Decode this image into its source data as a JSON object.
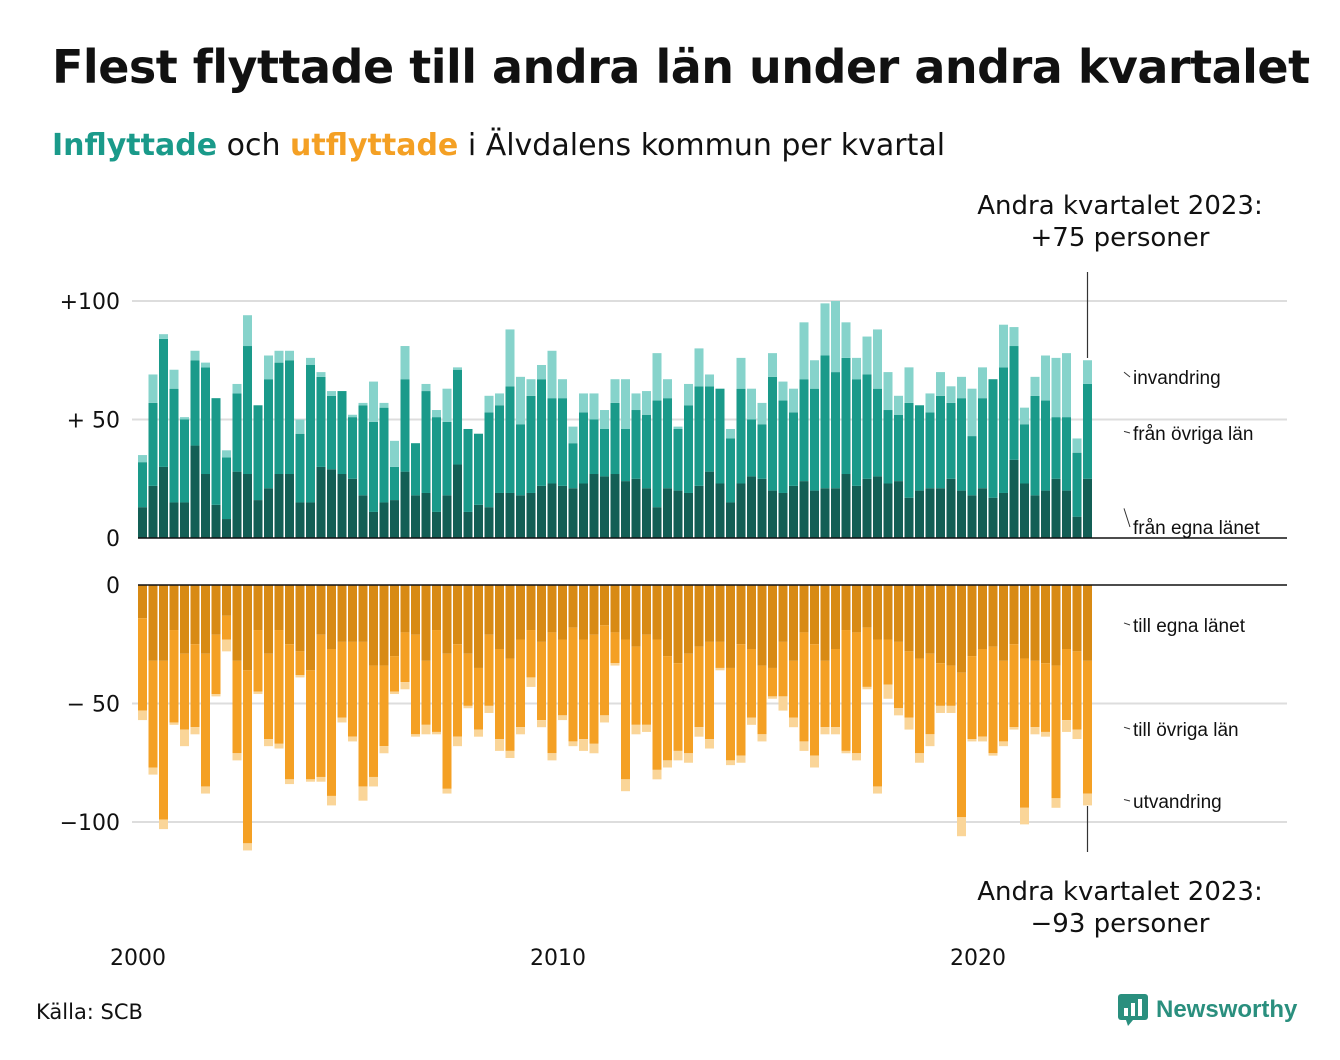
{
  "title": "Flest flyttade till andra län under andra kvartalet",
  "subtitle": {
    "part1": "Inflyttade",
    "part2": "och",
    "part3": "utflyttade",
    "part4": "i Älvdalens kommun per kvartal"
  },
  "annotation_top": {
    "line1": "Andra kvartalet 2023:",
    "line2": "+75 personer"
  },
  "annotation_bottom": {
    "line1": "Andra kvartalet 2023:",
    "line2": "−93 personer"
  },
  "source": "Källa: SCB",
  "logo_text": "Newsworthy",
  "colors": {
    "in_own": "#135f55",
    "in_other": "#1a9a8a",
    "in_immig": "#86d3cb",
    "out_own": "#d88a14",
    "out_other": "#f4a024",
    "out_emig": "#fad598",
    "grid": "#dddddd"
  },
  "chart_data": [
    {
      "type": "bar",
      "stacked": true,
      "title": "",
      "x_tick_labels": [
        "2000",
        "2010",
        "2020"
      ],
      "y_tick_labels": [
        "0",
        "+ 50",
        "+100"
      ],
      "ylim": [
        0,
        100
      ],
      "series_labels": [
        "från egna länet",
        "från övriga län",
        "invandring"
      ],
      "series": [
        {
          "name": "från egna länet",
          "values": [
            13,
            22,
            30,
            15,
            15,
            39,
            27,
            14,
            8,
            28,
            27,
            16,
            21,
            27,
            27,
            15,
            15,
            30,
            29,
            27,
            25,
            18,
            11,
            15,
            16,
            28,
            18,
            19,
            11,
            18,
            31,
            11,
            14,
            13,
            19,
            19,
            18,
            19,
            22,
            23,
            22,
            21,
            23,
            27,
            26,
            27,
            24,
            25,
            21,
            13,
            21,
            20,
            19,
            22,
            28,
            23,
            15,
            23,
            26,
            25,
            20,
            19,
            22,
            24,
            20,
            21,
            21,
            27,
            22,
            25,
            26,
            23,
            24,
            17,
            20,
            21,
            21,
            25,
            20,
            18,
            21,
            17,
            19,
            33,
            23,
            18,
            20,
            25,
            20,
            9,
            25
          ]
        },
        {
          "name": "från övriga län",
          "values": [
            19,
            35,
            54,
            48,
            35,
            36,
            45,
            45,
            26,
            33,
            54,
            40,
            46,
            47,
            48,
            29,
            58,
            38,
            31,
            35,
            26,
            38,
            38,
            40,
            14,
            39,
            22,
            43,
            40,
            31,
            40,
            35,
            30,
            40,
            37,
            45,
            30,
            41,
            45,
            36,
            37,
            19,
            30,
            23,
            20,
            30,
            22,
            29,
            31,
            45,
            38,
            26,
            37,
            42,
            36,
            40,
            27,
            40,
            24,
            23,
            48,
            39,
            31,
            43,
            43,
            56,
            49,
            49,
            45,
            44,
            37,
            31,
            28,
            40,
            36,
            32,
            39,
            32,
            39,
            25,
            38,
            50,
            53,
            48,
            25,
            42,
            38,
            26,
            31,
            27,
            40
          ]
        },
        {
          "name": "invandring",
          "values": [
            3,
            12,
            2,
            8,
            1,
            4,
            2,
            0,
            3,
            4,
            13,
            0,
            10,
            5,
            4,
            6,
            3,
            2,
            2,
            0,
            1,
            1,
            17,
            2,
            11,
            14,
            0,
            3,
            3,
            14,
            1,
            0,
            0,
            7,
            5,
            24,
            20,
            7,
            6,
            20,
            8,
            7,
            8,
            11,
            8,
            10,
            21,
            7,
            10,
            20,
            8,
            1,
            9,
            16,
            5,
            0,
            4,
            13,
            13,
            9,
            10,
            8,
            10,
            24,
            12,
            22,
            30,
            15,
            9,
            16,
            25,
            16,
            8,
            15,
            0,
            8,
            10,
            7,
            9,
            20,
            13,
            0,
            18,
            8,
            7,
            8,
            19,
            25,
            27,
            6,
            10
          ]
        }
      ]
    },
    {
      "type": "bar",
      "stacked": true,
      "title": "",
      "x_tick_labels": [
        "2000",
        "2010",
        "2020"
      ],
      "y_tick_labels": [
        "0",
        "− 50",
        "−100"
      ],
      "ylim": [
        -100,
        0
      ],
      "series_labels": [
        "till egna länet",
        "till övriga län",
        "utvandring"
      ],
      "series": [
        {
          "name": "till egna länet",
          "values": [
            -14,
            -32,
            -32,
            -19,
            -29,
            -25,
            -29,
            -21,
            -13,
            -32,
            -36,
            -19,
            -29,
            -19,
            -25,
            -28,
            -36,
            -21,
            -27,
            -24,
            -24,
            -24,
            -34,
            -34,
            -30,
            -20,
            -21,
            -32,
            -19,
            -29,
            -25,
            -29,
            -35,
            -21,
            -27,
            -31,
            -23,
            -19,
            -24,
            -20,
            -23,
            -18,
            -23,
            -21,
            -17,
            -20,
            -23,
            -26,
            -21,
            -23,
            -30,
            -33,
            -29,
            -26,
            -24,
            -24,
            -35,
            -25,
            -27,
            -34,
            -35,
            -24,
            -32,
            -20,
            -25,
            -32,
            -27,
            -19,
            -20,
            -18,
            -23,
            -23,
            -24,
            -28,
            -31,
            -29,
            -33,
            -34,
            -37,
            -30,
            -27,
            -26,
            -32,
            -25,
            -31,
            -32,
            -33,
            -34,
            -27,
            -28,
            -32
          ]
        },
        {
          "name": "till övriga län",
          "values": [
            -39,
            -45,
            -67,
            -39,
            -32,
            -35,
            -56,
            -25,
            -10,
            -39,
            -73,
            -26,
            -36,
            -48,
            -57,
            -10,
            -46,
            -60,
            -62,
            -32,
            -40,
            -61,
            -47,
            -34,
            -15,
            -21,
            -42,
            -27,
            -43,
            -57,
            -39,
            -22,
            -26,
            -30,
            -38,
            -39,
            -37,
            -20,
            -33,
            -51,
            -32,
            -48,
            -42,
            -46,
            -38,
            -13,
            -59,
            -33,
            -38,
            -55,
            -44,
            -37,
            -42,
            -34,
            -41,
            -11,
            -39,
            -47,
            -29,
            -29,
            -12,
            -23,
            -24,
            -46,
            -47,
            -28,
            -33,
            -51,
            -51,
            -25,
            -62,
            -19,
            -28,
            -28,
            -40,
            -34,
            -18,
            -17,
            -61,
            -35,
            -37,
            -45,
            -34,
            -35,
            -63,
            -28,
            -29,
            -56,
            -30,
            -33,
            -56
          ]
        },
        {
          "name": "utvandring",
          "values": [
            -4,
            -3,
            -4,
            -1,
            -7,
            -3,
            -3,
            -1,
            -5,
            -3,
            -3,
            -1,
            -3,
            -2,
            -2,
            -1,
            -1,
            -2,
            -4,
            -2,
            -2,
            -6,
            -4,
            -3,
            -1,
            -3,
            -1,
            -4,
            -1,
            -2,
            -4,
            -1,
            -3,
            -3,
            -5,
            -3,
            -3,
            -4,
            -3,
            -3,
            -2,
            -2,
            -5,
            -4,
            -3,
            -1,
            -5,
            -4,
            -3,
            -4,
            -3,
            -4,
            -4,
            -4,
            -4,
            -1,
            -2,
            -3,
            -3,
            -3,
            -1,
            -6,
            -4,
            -4,
            -5,
            -3,
            -3,
            -1,
            -3,
            -1,
            -3,
            -6,
            -3,
            -5,
            -4,
            -5,
            -3,
            -3,
            -8,
            -1,
            -2,
            -1,
            -2,
            -1,
            -7,
            -3,
            -2,
            -4,
            -5,
            -4,
            -5
          ]
        }
      ]
    }
  ]
}
